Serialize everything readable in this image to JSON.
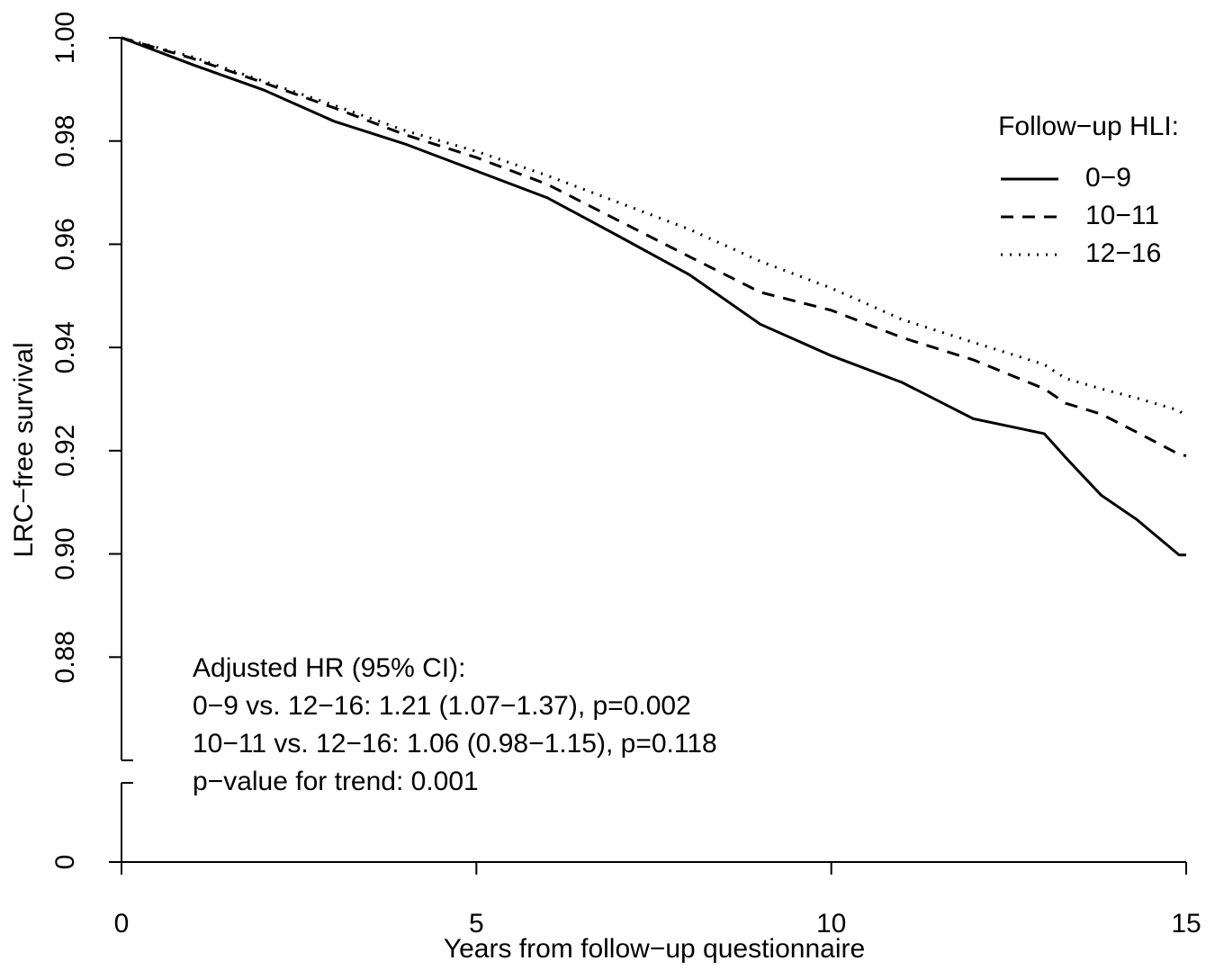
{
  "chart_data": {
    "type": "line",
    "x_label": "Years from follow−up questionnaire",
    "y_label": "LRC−free survival",
    "x": [
      0,
      1,
      2,
      3,
      4,
      5,
      6,
      7,
      8,
      9,
      10,
      11,
      12,
      13,
      13.3,
      13.8,
      14.3,
      14.9,
      15
    ],
    "series": [
      {
        "name": "0−9",
        "color": "#000000",
        "linestyle": "solid",
        "values": [
          1.0,
          0.9948,
          0.9899,
          0.9838,
          0.9794,
          0.9742,
          0.969,
          0.9616,
          0.9541,
          0.9445,
          0.9384,
          0.9332,
          0.9262,
          0.9233,
          0.9187,
          0.9114,
          0.9067,
          0.8998,
          0.8998
        ]
      },
      {
        "name": "10−11",
        "color": "#000000",
        "linestyle": "dashed",
        "values": [
          1.0,
          0.996,
          0.9913,
          0.9864,
          0.9812,
          0.9768,
          0.9716,
          0.9646,
          0.9576,
          0.9507,
          0.9472,
          0.9419,
          0.9376,
          0.932,
          0.9292,
          0.9271,
          0.9236,
          0.9193,
          0.919
        ]
      },
      {
        "name": "12−16",
        "color": "#000000",
        "linestyle": "dotted",
        "values": [
          1.0,
          0.9963,
          0.9916,
          0.9869,
          0.982,
          0.978,
          0.9733,
          0.9681,
          0.9629,
          0.9567,
          0.9515,
          0.9454,
          0.941,
          0.9367,
          0.934,
          0.932,
          0.9302,
          0.9278,
          0.9265
        ]
      }
    ],
    "legend_title": "Follow−up HLI:",
    "legend_position": "top-right",
    "annotations": [
      "Adjusted HR (95% CI):",
      "0−9 vs. 12−16: 1.21 (1.07−1.37), p=0.002",
      "10−11 vs. 12−16: 1.06 (0.98−1.15), p=0.118",
      "p−value for trend: 0.001"
    ],
    "xlim": [
      0,
      15
    ],
    "xticks": [
      0,
      5,
      10,
      15
    ],
    "ylim": [
      0,
      1
    ],
    "y_break": 0.86,
    "yticks": [
      0,
      0.88,
      {
        "value": 0.9,
        "label": "0.90"
      },
      0.92,
      0.94,
      0.96,
      0.98,
      {
        "value": 1,
        "label": "1.00"
      }
    ],
    "grid": false
  }
}
